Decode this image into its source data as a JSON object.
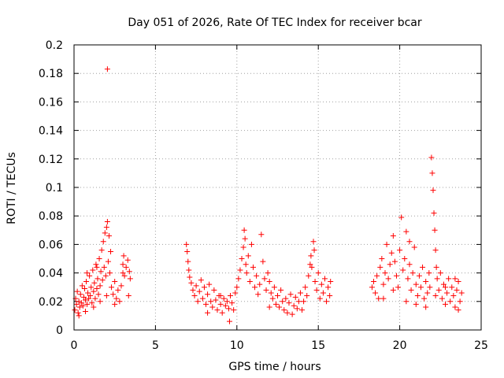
{
  "chart_data": {
    "type": "scatter",
    "title": "Day 051 of 2026, Rate Of TEC Index for receiver bcar",
    "xlabel": "GPS time / hours",
    "ylabel": "ROTI / TECUs",
    "xlim": [
      0,
      25
    ],
    "ylim": [
      0,
      0.2
    ],
    "xticks": [
      "0",
      "5",
      "10",
      "15",
      "20",
      "25"
    ],
    "yticks": [
      "0",
      "0.02",
      "0.04",
      "0.06",
      "0.08",
      "0.1",
      "0.12",
      "0.14",
      "0.16",
      "0.18",
      "0.2"
    ],
    "grid": true,
    "marker": "+",
    "color": "#ff0000",
    "series": [
      {
        "points": [
          [
            0.05,
            0.014
          ],
          [
            0.1,
            0.022
          ],
          [
            0.15,
            0.018
          ],
          [
            0.2,
            0.027
          ],
          [
            0.25,
            0.012
          ],
          [
            0.3,
            0.02
          ],
          [
            0.35,
            0.016
          ],
          [
            0.4,
            0.025
          ],
          [
            0.45,
            0.019
          ],
          [
            0.5,
            0.031
          ],
          [
            0.55,
            0.017
          ],
          [
            0.6,
            0.023
          ],
          [
            0.65,
            0.029
          ],
          [
            0.7,
            0.021
          ],
          [
            0.75,
            0.034
          ],
          [
            0.8,
            0.018
          ],
          [
            0.85,
            0.026
          ],
          [
            0.9,
            0.022
          ],
          [
            0.95,
            0.038
          ],
          [
            1.0,
            0.024
          ],
          [
            1.05,
            0.03
          ],
          [
            1.1,
            0.019
          ],
          [
            1.15,
            0.042
          ],
          [
            1.2,
            0.027
          ],
          [
            1.25,
            0.033
          ],
          [
            1.3,
            0.022
          ],
          [
            1.35,
            0.046
          ],
          [
            1.4,
            0.029
          ],
          [
            1.45,
            0.036
          ],
          [
            1.5,
            0.025
          ],
          [
            1.55,
            0.05
          ],
          [
            1.6,
            0.031
          ],
          [
            1.65,
            0.041
          ],
          [
            1.7,
            0.056
          ],
          [
            1.75,
            0.035
          ],
          [
            1.8,
            0.062
          ],
          [
            1.85,
            0.044
          ],
          [
            1.9,
            0.068
          ],
          [
            1.95,
            0.038
          ],
          [
            2.0,
            0.072
          ],
          [
            2.05,
            0.076
          ],
          [
            2.1,
            0.048
          ],
          [
            2.15,
            0.066
          ],
          [
            2.2,
            0.04
          ],
          [
            2.25,
            0.055
          ],
          [
            2.05,
            0.183
          ],
          [
            2.3,
            0.03
          ],
          [
            2.4,
            0.025
          ],
          [
            2.5,
            0.034
          ],
          [
            2.6,
            0.022
          ],
          [
            2.7,
            0.028
          ],
          [
            2.8,
            0.02
          ],
          [
            2.9,
            0.031
          ],
          [
            3.0,
            0.046
          ],
          [
            3.05,
            0.052
          ],
          [
            3.1,
            0.038
          ],
          [
            3.2,
            0.044
          ],
          [
            3.3,
            0.049
          ],
          [
            3.4,
            0.041
          ],
          [
            3.45,
            0.036
          ],
          [
            0.3,
            0.01
          ],
          [
            0.7,
            0.013
          ],
          [
            1.2,
            0.016
          ],
          [
            1.6,
            0.02
          ],
          [
            2.0,
            0.024
          ],
          [
            2.5,
            0.018
          ],
          [
            3.0,
            0.04
          ],
          [
            3.35,
            0.024
          ],
          [
            0.8,
            0.04
          ],
          [
            1.4,
            0.044
          ],
          [
            6.9,
            0.06
          ],
          [
            6.95,
            0.055
          ],
          [
            7.0,
            0.048
          ],
          [
            7.05,
            0.042
          ],
          [
            7.1,
            0.037
          ],
          [
            7.2,
            0.033
          ],
          [
            7.3,
            0.028
          ],
          [
            7.4,
            0.024
          ],
          [
            7.5,
            0.031
          ],
          [
            7.6,
            0.02
          ],
          [
            7.7,
            0.027
          ],
          [
            7.8,
            0.035
          ],
          [
            7.9,
            0.022
          ],
          [
            8.0,
            0.03
          ],
          [
            8.1,
            0.018
          ],
          [
            8.2,
            0.025
          ],
          [
            8.3,
            0.032
          ],
          [
            8.4,
            0.02
          ],
          [
            8.5,
            0.016
          ],
          [
            8.6,
            0.028
          ],
          [
            8.7,
            0.021
          ],
          [
            8.8,
            0.014
          ],
          [
            8.9,
            0.024
          ],
          [
            9.0,
            0.018
          ],
          [
            9.1,
            0.012
          ],
          [
            9.2,
            0.022
          ],
          [
            9.3,
            0.017
          ],
          [
            9.4,
            0.02
          ],
          [
            9.5,
            0.015
          ],
          [
            9.55,
            0.006
          ],
          [
            9.6,
            0.024
          ],
          [
            9.7,
            0.019
          ],
          [
            9.8,
            0.014
          ],
          [
            9.9,
            0.026
          ],
          [
            10.0,
            0.03
          ],
          [
            10.1,
            0.036
          ],
          [
            10.2,
            0.042
          ],
          [
            10.3,
            0.05
          ],
          [
            10.4,
            0.058
          ],
          [
            10.45,
            0.07
          ],
          [
            10.5,
            0.064
          ],
          [
            10.55,
            0.046
          ],
          [
            10.6,
            0.04
          ],
          [
            10.7,
            0.052
          ],
          [
            10.8,
            0.034
          ],
          [
            10.9,
            0.06
          ],
          [
            11.0,
            0.044
          ],
          [
            11.1,
            0.03
          ],
          [
            11.2,
            0.038
          ],
          [
            11.3,
            0.025
          ],
          [
            11.4,
            0.032
          ],
          [
            11.5,
            0.067
          ],
          [
            11.6,
            0.048
          ],
          [
            11.7,
            0.036
          ],
          [
            11.8,
            0.028
          ],
          [
            11.9,
            0.04
          ],
          [
            12.0,
            0.034
          ],
          [
            12.1,
            0.026
          ],
          [
            12.2,
            0.022
          ],
          [
            12.3,
            0.03
          ],
          [
            12.4,
            0.018
          ],
          [
            12.5,
            0.024
          ],
          [
            12.6,
            0.016
          ],
          [
            12.7,
            0.028
          ],
          [
            12.8,
            0.02
          ],
          [
            12.9,
            0.014
          ],
          [
            13.0,
            0.022
          ],
          [
            13.1,
            0.012
          ],
          [
            13.2,
            0.019
          ],
          [
            13.3,
            0.025
          ],
          [
            13.4,
            0.011
          ],
          [
            13.5,
            0.017
          ],
          [
            13.6,
            0.023
          ],
          [
            13.7,
            0.015
          ],
          [
            13.8,
            0.02
          ],
          [
            13.9,
            0.026
          ],
          [
            14.0,
            0.014
          ],
          [
            14.1,
            0.02
          ],
          [
            14.2,
            0.03
          ],
          [
            14.3,
            0.024
          ],
          [
            14.4,
            0.038
          ],
          [
            14.5,
            0.046
          ],
          [
            14.55,
            0.052
          ],
          [
            14.6,
            0.044
          ],
          [
            14.7,
            0.062
          ],
          [
            14.75,
            0.056
          ],
          [
            14.8,
            0.034
          ],
          [
            14.9,
            0.028
          ],
          [
            15.0,
            0.04
          ],
          [
            15.1,
            0.022
          ],
          [
            15.2,
            0.032
          ],
          [
            15.3,
            0.026
          ],
          [
            15.4,
            0.036
          ],
          [
            15.5,
            0.02
          ],
          [
            15.6,
            0.03
          ],
          [
            15.7,
            0.024
          ],
          [
            15.75,
            0.034
          ],
          [
            8.2,
            0.012
          ],
          [
            9.0,
            0.024
          ],
          [
            12.0,
            0.016
          ],
          [
            18.3,
            0.03
          ],
          [
            18.4,
            0.034
          ],
          [
            18.5,
            0.026
          ],
          [
            18.6,
            0.038
          ],
          [
            18.7,
            0.022
          ],
          [
            18.8,
            0.044
          ],
          [
            18.9,
            0.05
          ],
          [
            19.0,
            0.032
          ],
          [
            19.1,
            0.04
          ],
          [
            19.2,
            0.06
          ],
          [
            19.3,
            0.036
          ],
          [
            19.4,
            0.046
          ],
          [
            19.5,
            0.054
          ],
          [
            19.6,
            0.066
          ],
          [
            19.7,
            0.048
          ],
          [
            19.8,
            0.038
          ],
          [
            19.9,
            0.03
          ],
          [
            20.0,
            0.056
          ],
          [
            20.1,
            0.079
          ],
          [
            20.2,
            0.042
          ],
          [
            20.3,
            0.05
          ],
          [
            20.4,
            0.069
          ],
          [
            20.5,
            0.036
          ],
          [
            20.6,
            0.046
          ],
          [
            20.7,
            0.028
          ],
          [
            20.8,
            0.04
          ],
          [
            20.9,
            0.058
          ],
          [
            21.0,
            0.032
          ],
          [
            21.1,
            0.024
          ],
          [
            21.2,
            0.038
          ],
          [
            21.3,
            0.03
          ],
          [
            21.4,
            0.044
          ],
          [
            21.5,
            0.022
          ],
          [
            21.6,
            0.034
          ],
          [
            21.7,
            0.026
          ],
          [
            21.8,
            0.04
          ],
          [
            21.85,
            0.03
          ],
          [
            21.95,
            0.121
          ],
          [
            22.0,
            0.11
          ],
          [
            22.05,
            0.098
          ],
          [
            22.1,
            0.082
          ],
          [
            22.15,
            0.07
          ],
          [
            22.2,
            0.056
          ],
          [
            22.25,
            0.044
          ],
          [
            22.3,
            0.036
          ],
          [
            22.4,
            0.028
          ],
          [
            22.5,
            0.04
          ],
          [
            22.6,
            0.022
          ],
          [
            22.7,
            0.032
          ],
          [
            22.8,
            0.018
          ],
          [
            22.9,
            0.026
          ],
          [
            23.0,
            0.036
          ],
          [
            23.1,
            0.02
          ],
          [
            23.2,
            0.03
          ],
          [
            23.3,
            0.024
          ],
          [
            23.4,
            0.016
          ],
          [
            23.5,
            0.028
          ],
          [
            23.6,
            0.034
          ],
          [
            23.7,
            0.02
          ],
          [
            23.8,
            0.026
          ],
          [
            19.0,
            0.022
          ],
          [
            19.6,
            0.028
          ],
          [
            20.4,
            0.02
          ],
          [
            21.0,
            0.018
          ],
          [
            21.6,
            0.016
          ],
          [
            22.2,
            0.024
          ],
          [
            22.8,
            0.03
          ],
          [
            23.4,
            0.036
          ],
          [
            23.6,
            0.014
          ],
          [
            20.6,
            0.062
          ]
        ]
      }
    ]
  }
}
